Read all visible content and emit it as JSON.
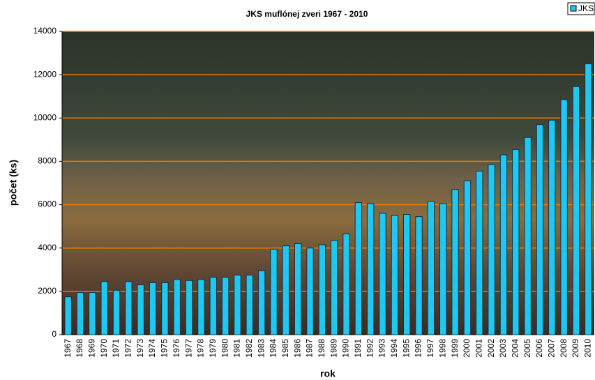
{
  "chart_data": {
    "type": "bar",
    "title": "JKS muflónej zveri 1967 - 2010",
    "title_color": "#1a8a1a",
    "x_label": "rok",
    "y_label": "počet (ks)",
    "categories": [
      "1967",
      "1968",
      "1969",
      "1970",
      "1971",
      "1972",
      "1973",
      "1974",
      "1975",
      "1976",
      "1977",
      "1978",
      "1979",
      "1980",
      "1981",
      "1982",
      "1983",
      "1984",
      "1985",
      "1986",
      "1987",
      "1988",
      "1989",
      "1990",
      "1991",
      "1992",
      "1993",
      "1994",
      "1995",
      "1996",
      "1997",
      "1998",
      "1999",
      "2000",
      "2001",
      "2002",
      "2003",
      "2004",
      "2005",
      "2006",
      "2007",
      "2008",
      "2009",
      "2010"
    ],
    "series": [
      {
        "name": "JKS",
        "color": "#1ec8f0",
        "values": [
          1750,
          1950,
          1950,
          2450,
          2050,
          2450,
          2300,
          2400,
          2400,
          2550,
          2500,
          2550,
          2650,
          2650,
          2750,
          2750,
          2950,
          3950,
          4100,
          4200,
          4000,
          4150,
          4350,
          4650,
          6100,
          6050,
          5600,
          5500,
          5550,
          5450,
          6150,
          6050,
          6700,
          7100,
          7550,
          7850,
          8300,
          8550,
          9100,
          9700,
          9900,
          10850,
          11450,
          12500
        ]
      }
    ],
    "ylim": [
      0,
      14000
    ],
    "yticks": [
      0,
      2000,
      4000,
      6000,
      8000,
      10000,
      12000,
      14000
    ],
    "grid": true,
    "grid_color": "#f07800",
    "legend": "top-right"
  }
}
